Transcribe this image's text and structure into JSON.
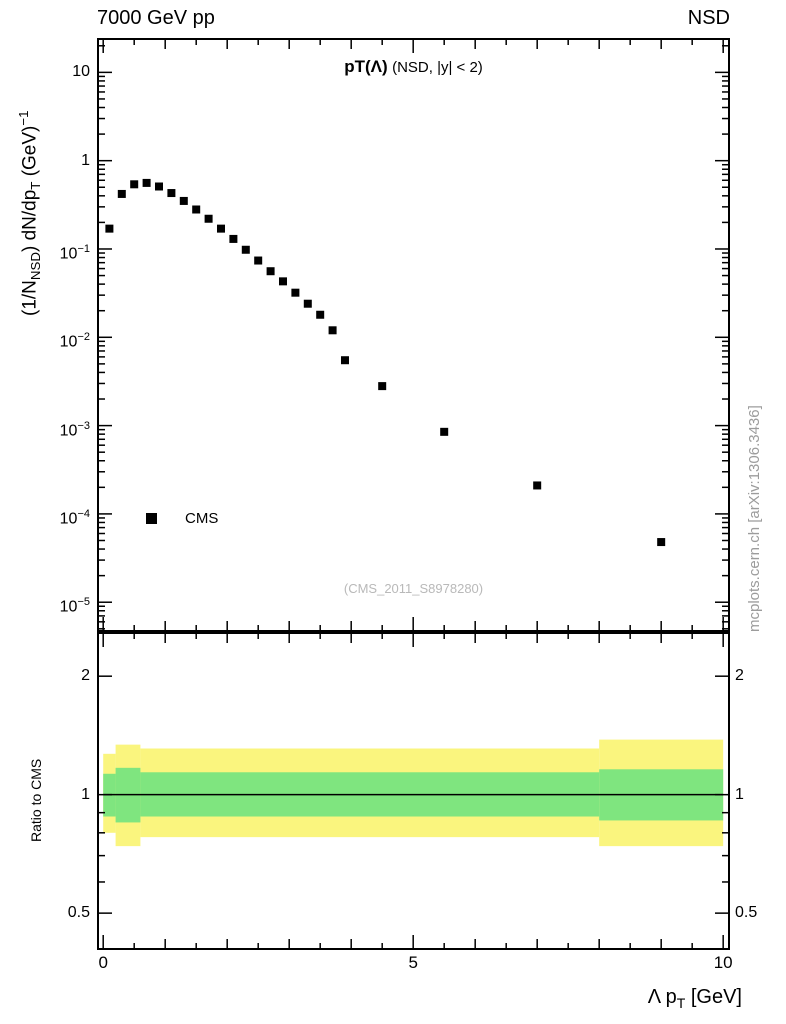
{
  "header": {
    "left_label": "7000 GeV pp",
    "right_label": "NSD"
  },
  "side_note": "mcplots.cern.ch [arXiv:1306.3436]",
  "main_plot": {
    "title_main": "pT(Λ)",
    "title_condition": "(NSD, |y| < 2)",
    "reference": "(CMS_2011_S8978280)",
    "legend": {
      "label": "CMS",
      "marker": "filled-square",
      "marker_color": "#000000"
    },
    "ylabel_parts": {
      "p1": "(1/N",
      "sub1": "NSD",
      "p2": ") dN/dp",
      "sub2": "T",
      "p3": " (GeV)",
      "sup1": "−1"
    },
    "y_ticks": [
      {
        "v": 10,
        "base": "10",
        "sup": ""
      },
      {
        "v": 1,
        "base": "1",
        "sup": ""
      },
      {
        "v": 0.1,
        "base": "10",
        "sup": "−1"
      },
      {
        "v": 0.01,
        "base": "10",
        "sup": "−2"
      },
      {
        "v": 0.001,
        "base": "10",
        "sup": "−3"
      },
      {
        "v": 0.0001,
        "base": "10",
        "sup": "−4"
      },
      {
        "v": 1e-05,
        "base": "10",
        "sup": "−5"
      }
    ]
  },
  "ratio_plot": {
    "ylabel": "Ratio to CMS",
    "y_ticks": [
      {
        "v": 2,
        "label": "2"
      },
      {
        "v": 1,
        "label": "1"
      },
      {
        "v": 0.5,
        "label": "0.5"
      }
    ]
  },
  "x_axis": {
    "ticks": [
      {
        "v": 0,
        "label": "0"
      },
      {
        "v": 5,
        "label": "5"
      },
      {
        "v": 10,
        "label": "10"
      }
    ],
    "title_parts": {
      "p1": "Λ p",
      "sub": "T",
      "p2": " [GeV]"
    }
  },
  "colors": {
    "outer_band": "#faf57e",
    "inner_band": "#7fe57f",
    "marker": "#000000",
    "frame": "#000000",
    "muted_text": "#b0b0b0"
  },
  "chart_data": [
    {
      "type": "scatter",
      "title": "pT(Λ) (NSD, |y| < 2)",
      "xlabel": "Λ pT [GeV]",
      "ylabel": "(1/N_NSD) dN/dpT (GeV)^-1",
      "x_range": [
        -0.1,
        10.11
      ],
      "y_range_log": [
        4.6e-06,
        24.5
      ],
      "y_scale": "log",
      "grid": false,
      "series": [
        {
          "name": "CMS",
          "marker": "filled-square",
          "color": "#000000",
          "points": [
            [
              0.1,
              0.17
            ],
            [
              0.3,
              0.42
            ],
            [
              0.5,
              0.54
            ],
            [
              0.7,
              0.56
            ],
            [
              0.9,
              0.51
            ],
            [
              1.1,
              0.43
            ],
            [
              1.3,
              0.35
            ],
            [
              1.5,
              0.28
            ],
            [
              1.7,
              0.22
            ],
            [
              1.9,
              0.17
            ],
            [
              2.1,
              0.13
            ],
            [
              2.3,
              0.098
            ],
            [
              2.5,
              0.074
            ],
            [
              2.7,
              0.056
            ],
            [
              2.9,
              0.043
            ],
            [
              3.1,
              0.032
            ],
            [
              3.3,
              0.024
            ],
            [
              3.5,
              0.018
            ],
            [
              3.7,
              0.012
            ],
            [
              3.9,
              0.0055
            ],
            [
              4.5,
              0.0028
            ],
            [
              5.5,
              0.00085
            ],
            [
              7.0,
              0.00021
            ],
            [
              9.0,
              4.8e-05
            ]
          ]
        }
      ]
    },
    {
      "type": "band",
      "title": "Ratio to CMS",
      "xlabel": "Λ pT [GeV]",
      "ylabel": "Ratio to CMS",
      "x_range": [
        -0.1,
        10.11
      ],
      "y_range_log": [
        0.403,
        2.59
      ],
      "y_scale": "log",
      "reference_line": 1.0,
      "bands": [
        {
          "name": "outer-uncertainty-band",
          "color": "#faf57e",
          "segments": [
            [
              0.0,
              0.2,
              0.8,
              1.27
            ],
            [
              0.2,
              0.6,
              0.74,
              1.34
            ],
            [
              0.6,
              8.0,
              0.78,
              1.31
            ],
            [
              8.0,
              10.0,
              0.74,
              1.38
            ]
          ]
        },
        {
          "name": "inner-uncertainty-band",
          "color": "#7fe57f",
          "segments": [
            [
              0.0,
              0.2,
              0.88,
              1.13
            ],
            [
              0.2,
              0.6,
              0.85,
              1.17
            ],
            [
              0.6,
              8.0,
              0.88,
              1.14
            ],
            [
              8.0,
              10.0,
              0.86,
              1.16
            ]
          ]
        }
      ]
    }
  ]
}
